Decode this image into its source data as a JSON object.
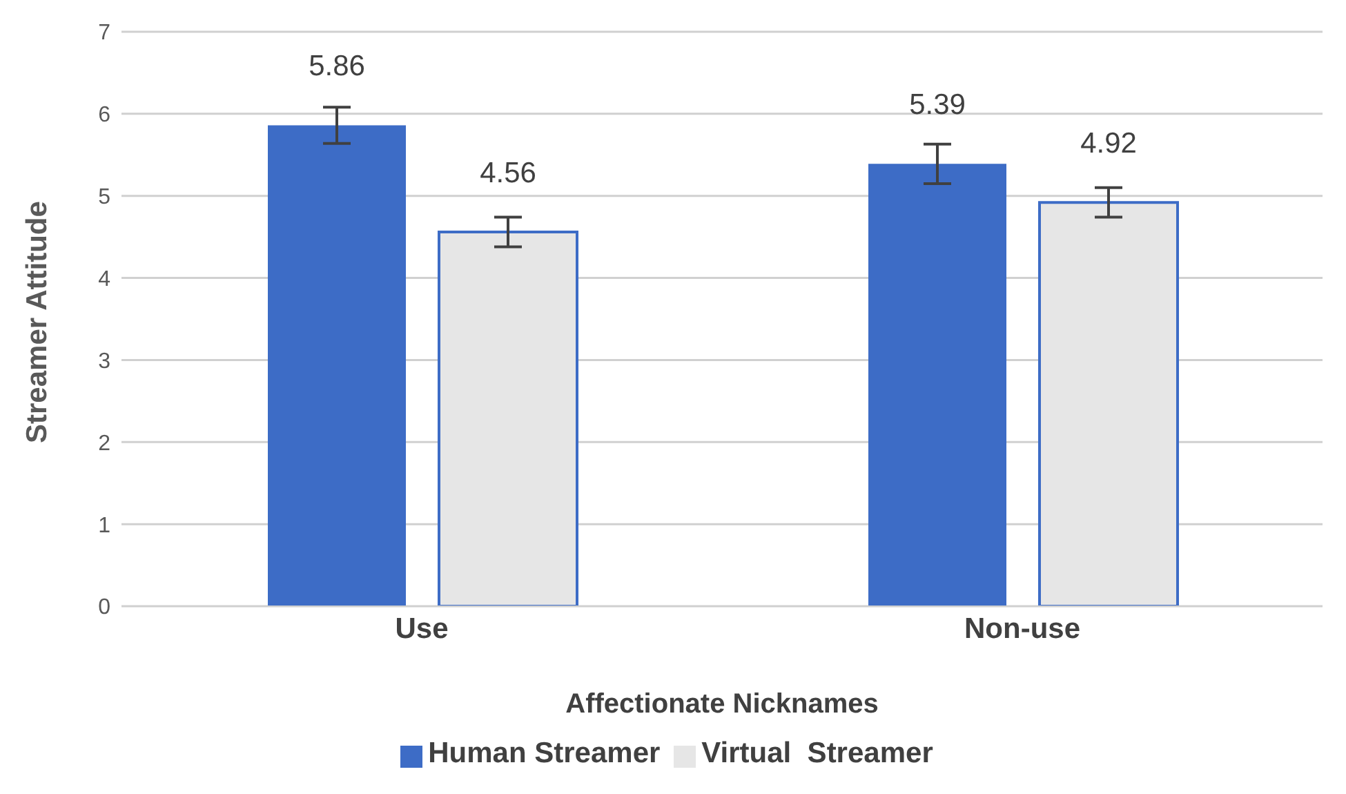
{
  "chart_data": {
    "type": "bar",
    "xlabel": "Affectionate Nicknames",
    "ylabel": "Streamer Attitude",
    "categories": [
      "Use",
      "Non-use"
    ],
    "series": [
      {
        "name": "Human Streamer",
        "color": "#3d6cc6",
        "values": [
          5.86,
          5.39
        ],
        "errors": [
          0.22,
          0.24
        ]
      },
      {
        "name": "Virtual  Streamer",
        "color": "#e6e6e6",
        "values": [
          4.56,
          4.92
        ],
        "errors": [
          0.18,
          0.18
        ]
      }
    ],
    "ylim": [
      0,
      7
    ],
    "yticks": [
      0,
      1,
      2,
      3,
      4,
      5,
      6,
      7
    ],
    "grid": "y",
    "legend": "bottom",
    "data_labels": true
  }
}
